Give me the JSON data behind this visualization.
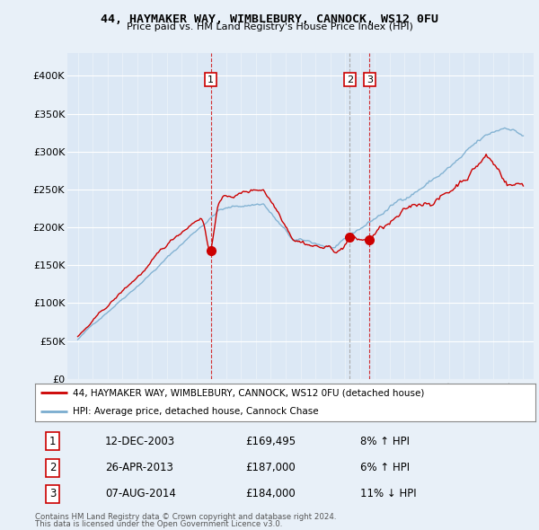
{
  "title": "44, HAYMAKER WAY, WIMBLEBURY, CANNOCK, WS12 0FU",
  "subtitle": "Price paid vs. HM Land Registry's House Price Index (HPI)",
  "ylabel_ticks": [
    "£0",
    "£50K",
    "£100K",
    "£150K",
    "£200K",
    "£250K",
    "£300K",
    "£350K",
    "£400K"
  ],
  "ytick_values": [
    0,
    50000,
    100000,
    150000,
    200000,
    250000,
    300000,
    350000,
    400000
  ],
  "ylim": [
    0,
    420000
  ],
  "transactions": [
    {
      "label": "1",
      "date": "12-DEC-2003",
      "price": 169495,
      "year": 2003.95,
      "hpi_diff": "8% ↑ HPI"
    },
    {
      "label": "2",
      "date": "26-APR-2013",
      "price": 187000,
      "year": 2013.32,
      "hpi_diff": "6% ↑ HPI"
    },
    {
      "label": "3",
      "date": "07-AUG-2014",
      "price": 184000,
      "year": 2014.6,
      "hpi_diff": "11% ↓ HPI"
    }
  ],
  "legend_line1": "44, HAYMAKER WAY, WIMBLEBURY, CANNOCK, WS12 0FU (detached house)",
  "legend_line2": "HPI: Average price, detached house, Cannock Chase",
  "footer1": "Contains HM Land Registry data © Crown copyright and database right 2024.",
  "footer2": "This data is licensed under the Open Government Licence v3.0.",
  "red_color": "#cc0000",
  "blue_color": "#7aadcf",
  "bg_color": "#e8f0f8",
  "plot_bg": "#dce8f5",
  "grid_color": "#c8d8e8"
}
